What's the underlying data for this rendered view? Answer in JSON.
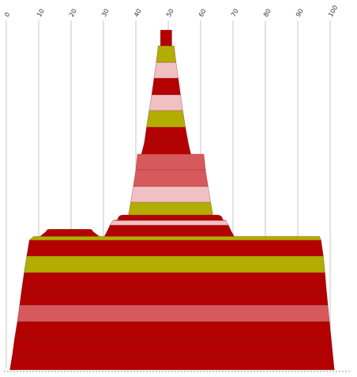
{
  "colors": {
    "red": "#b30000",
    "olive": "#b3ad00",
    "pink": "#f0c0c2",
    "salmon": "#d65a5c",
    "gridline": "#c6c6c6",
    "border": "#7a2a2a"
  },
  "chart_data": {
    "type": "area",
    "title": "",
    "xlabel": "",
    "ylabel": "",
    "axis": {
      "xlim": [
        0,
        100
      ],
      "tick_values": [
        0,
        10,
        20,
        30,
        40,
        50,
        60,
        70,
        80,
        90,
        100
      ],
      "tick_labels": [
        "0",
        "10",
        "20",
        "30",
        "40",
        "50",
        "60",
        "70",
        "80",
        "90",
        "100"
      ],
      "tick_position": "top",
      "tick_label_rotation": -60,
      "grid": true
    },
    "shapes": [
      {
        "name": "",
        "bands": [
          {
            "left_top": 8.5,
            "right_top": 96.7,
            "left_bottom": 7.1,
            "right_bottom": 97.2,
            "color": "olive"
          },
          {
            "left_top": 7.1,
            "right_top": 97.2,
            "left_bottom": 6.3,
            "right_bottom": 97.9,
            "color": "red"
          },
          {
            "left_top": 6.3,
            "right_top": 97.9,
            "left_bottom": 5.5,
            "right_bottom": 98.4,
            "color": "olive"
          },
          {
            "left_top": 5.5,
            "right_top": 98.4,
            "left_bottom": 4.8,
            "right_bottom": 98.8,
            "color": "red"
          },
          {
            "left_top": 4.8,
            "right_top": 98.8,
            "left_bottom": 4.1,
            "right_bottom": 99.3,
            "color": "red"
          },
          {
            "left_top": 4.1,
            "right_top": 99.3,
            "left_bottom": 3.4,
            "right_bottom": 99.8,
            "color": "salmon"
          },
          {
            "left_top": 3.4,
            "right_top": 99.8,
            "left_bottom": 2.6,
            "right_bottom": 100.3,
            "color": "red"
          },
          {
            "left_top": 2.6,
            "right_top": 100.3,
            "left_bottom": 1.9,
            "right_bottom": 100.8,
            "color": "red"
          },
          {
            "left_top": 1.9,
            "right_top": 100.8,
            "left_bottom": 1.1,
            "right_bottom": 101.3,
            "color": "red"
          }
        ]
      },
      {
        "name": "",
        "bands": [
          {
            "left_top": 12.5,
            "right_top": 26.5,
            "left_bottom": 10.5,
            "right_bottom": 28.7,
            "color": "red"
          }
        ]
      },
      {
        "name": "",
        "bands": [
          {
            "left_top": 47.6,
            "right_top": 51.1,
            "left_bottom": 47.6,
            "right_bottom": 51.1,
            "color": "red"
          },
          {
            "left_top": 46.9,
            "right_top": 51.8,
            "left_bottom": 46.3,
            "right_bottom": 52.4,
            "color": "olive"
          },
          {
            "left_top": 46.3,
            "right_top": 52.4,
            "left_bottom": 45.6,
            "right_bottom": 53.1,
            "color": "pink"
          },
          {
            "left_top": 45.6,
            "right_top": 53.1,
            "left_bottom": 44.9,
            "right_bottom": 53.8,
            "color": "red"
          },
          {
            "left_top": 44.9,
            "right_top": 53.8,
            "left_bottom": 44.1,
            "right_bottom": 54.5,
            "color": "pink"
          },
          {
            "left_top": 44.1,
            "right_top": 54.5,
            "left_bottom": 43.3,
            "right_bottom": 55.3,
            "color": "olive"
          },
          {
            "left_top": 43.3,
            "right_top": 55.3,
            "left_bottom": 42.6,
            "right_bottom": 56.2,
            "color": "red"
          },
          {
            "left_top": 42.6,
            "right_top": 56.2,
            "left_bottom": 41.6,
            "right_bottom": 57.1,
            "color": "red"
          }
        ]
      },
      {
        "name": "",
        "bands": [
          {
            "left_top": 40.5,
            "right_top": 61.0,
            "left_bottom": 40.0,
            "right_bottom": 61.5,
            "color": "salmon"
          },
          {
            "left_top": 40.0,
            "right_top": 61.5,
            "left_bottom": 39.2,
            "right_bottom": 62.3,
            "color": "salmon"
          },
          {
            "left_top": 39.2,
            "right_top": 62.3,
            "left_bottom": 38.4,
            "right_bottom": 63.1,
            "color": "pink"
          },
          {
            "left_top": 38.4,
            "right_top": 63.1,
            "left_bottom": 37.6,
            "right_bottom": 63.9,
            "color": "olive"
          }
        ]
      },
      {
        "name": "",
        "bands": [
          {
            "left_top": 34.6,
            "right_top": 66.6,
            "left_bottom": 32.9,
            "right_bottom": 67.8,
            "color": "red"
          },
          {
            "left_top": 32.9,
            "right_top": 67.8,
            "left_bottom": 32.0,
            "right_bottom": 68.6,
            "color": "pink"
          },
          {
            "left_top": 32.0,
            "right_top": 68.6,
            "left_bottom": 31.2,
            "right_bottom": 69.4,
            "color": "red"
          },
          {
            "left_top": 31.2,
            "right_top": 69.4,
            "left_bottom": 30.3,
            "right_bottom": 70.3,
            "color": "red"
          }
        ]
      }
    ]
  }
}
